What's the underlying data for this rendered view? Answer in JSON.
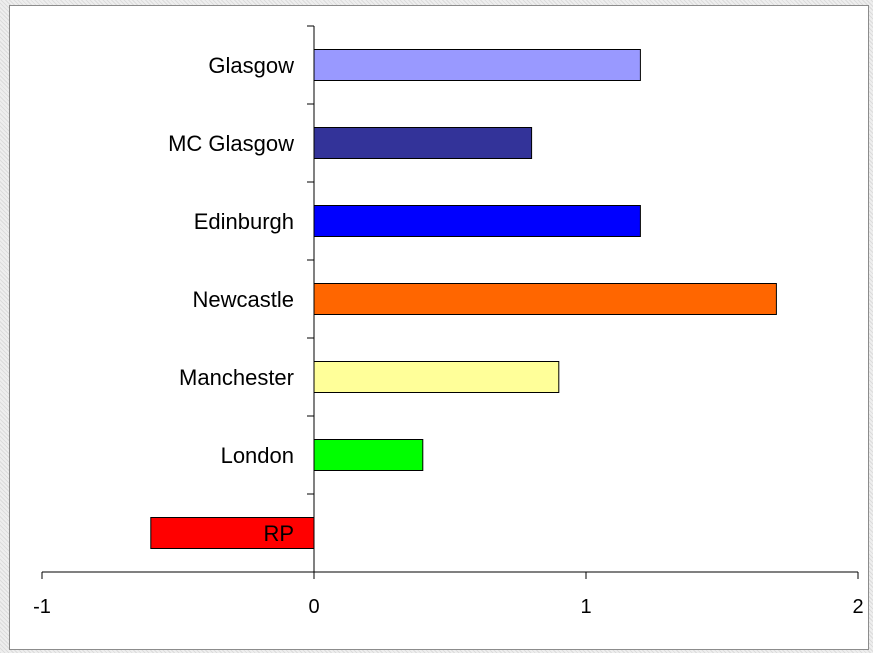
{
  "chart_data": {
    "type": "bar",
    "orientation": "horizontal",
    "categories": [
      "Glasgow",
      "MC Glasgow",
      "Edinburgh",
      "Newcastle",
      "Manchester",
      "London",
      "RP"
    ],
    "values": [
      1.2,
      0.8,
      1.2,
      1.7,
      0.9,
      0.4,
      -0.6
    ],
    "bar_colors": [
      "#9999ff",
      "#333399",
      "#0000ff",
      "#ff6600",
      "#ffff99",
      "#00ff00",
      "#ff0000"
    ],
    "xlim": [
      -1,
      2
    ],
    "xticks": [
      "-1",
      "0",
      "1",
      "2"
    ],
    "title": "",
    "xlabel": "",
    "ylabel": "",
    "grid": false,
    "legend": "none"
  }
}
